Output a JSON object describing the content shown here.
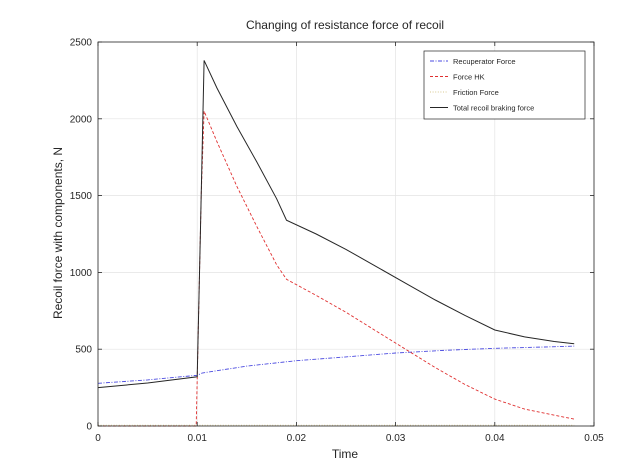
{
  "chart_data": {
    "type": "line",
    "title": "Changing of resistance force of recoil",
    "xlabel": "Time",
    "ylabel": "Recoil force with components, N",
    "xlim": [
      0,
      0.05
    ],
    "ylim": [
      0,
      2500
    ],
    "xticks": [
      0,
      0.01,
      0.02,
      0.03,
      0.04,
      0.05
    ],
    "xtick_labels": [
      "0",
      "0.01",
      "0.02",
      "0.03",
      "0.04",
      "0.05"
    ],
    "yticks": [
      0,
      500,
      1000,
      1500,
      2000,
      2500
    ],
    "ytick_labels": [
      "0",
      "500",
      "1000",
      "1500",
      "2000",
      "2500"
    ],
    "grid": true,
    "legend_position": "top-right",
    "series": [
      {
        "name": "Recuperator Force",
        "color": "#4a4ae0",
        "dash": "dashdot",
        "x": [
          0,
          0.005,
          0.01,
          0.0105,
          0.015,
          0.02,
          0.025,
          0.03,
          0.035,
          0.04,
          0.045,
          0.048
        ],
        "y": [
          278,
          300,
          330,
          345,
          390,
          425,
          450,
          475,
          493,
          506,
          514,
          520
        ]
      },
      {
        "name": "Force HK",
        "color": "#e03030",
        "dash": "dashed",
        "x": [
          0,
          0.0099,
          0.0104,
          0.0107,
          0.012,
          0.014,
          0.016,
          0.018,
          0.019,
          0.022,
          0.025,
          0.028,
          0.031,
          0.034,
          0.037,
          0.04,
          0.043,
          0.046,
          0.048
        ],
        "y": [
          0,
          0,
          1500,
          2050,
          1850,
          1560,
          1300,
          1050,
          955,
          850,
          740,
          620,
          500,
          380,
          270,
          175,
          110,
          70,
          45
        ]
      },
      {
        "name": "Friction Force",
        "color": "#d8c890",
        "dash": "dotted",
        "x": [
          0,
          0.048
        ],
        "y": [
          5,
          5
        ]
      },
      {
        "name": "Total recoil braking force",
        "color": "#262626",
        "dash": "solid",
        "x": [
          0,
          0.005,
          0.01,
          0.0103,
          0.0107,
          0.012,
          0.014,
          0.016,
          0.018,
          0.019,
          0.022,
          0.025,
          0.028,
          0.031,
          0.034,
          0.037,
          0.04,
          0.043,
          0.046,
          0.048
        ],
        "y": [
          250,
          280,
          320,
          1200,
          2380,
          2200,
          1950,
          1720,
          1480,
          1340,
          1250,
          1150,
          1040,
          930,
          820,
          720,
          625,
          580,
          550,
          535
        ]
      }
    ]
  }
}
